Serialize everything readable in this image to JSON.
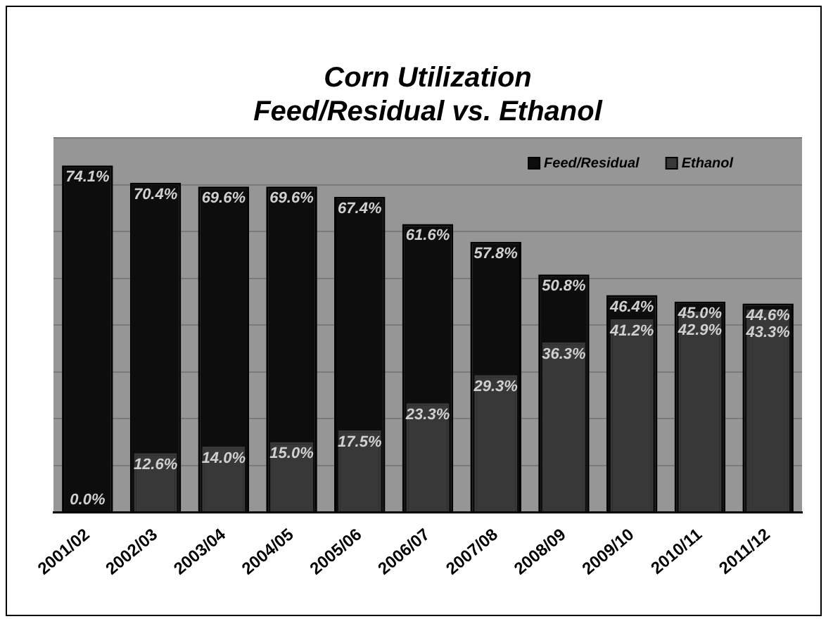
{
  "chart_data": {
    "type": "bar",
    "title": "Corn Utilization",
    "subtitle": "Feed/Residual vs. Ethanol",
    "categories": [
      "2001/02",
      "2002/03",
      "2003/04",
      "2004/05",
      "2005/06",
      "2006/07",
      "2007/08",
      "2008/09",
      "2009/10",
      "2010/11",
      "2011/12"
    ],
    "series": [
      {
        "name": "Feed/Residual",
        "color": "#0d0d0d",
        "values": [
          74.1,
          70.4,
          69.6,
          69.6,
          67.4,
          61.6,
          57.8,
          50.8,
          46.4,
          45.0,
          44.6
        ],
        "value_labels": [
          "74.1%",
          "70.4%",
          "69.6%",
          "69.6%",
          "67.4%",
          "61.6%",
          "57.8%",
          "50.8%",
          "46.4%",
          "45.0%",
          "44.6%"
        ]
      },
      {
        "name": "Ethanol",
        "color": "#383838",
        "values": [
          0.0,
          12.6,
          14.0,
          15.0,
          17.5,
          23.3,
          29.3,
          36.3,
          41.2,
          42.9,
          43.3
        ],
        "value_labels": [
          "0.0%",
          "12.6%",
          "14.0%",
          "15.0%",
          "17.5%",
          "23.3%",
          "29.3%",
          "36.3%",
          "41.2%",
          "42.9%",
          "43.3%"
        ]
      }
    ],
    "tick_labels": "x",
    "grid": "y",
    "legend": "top right"
  }
}
